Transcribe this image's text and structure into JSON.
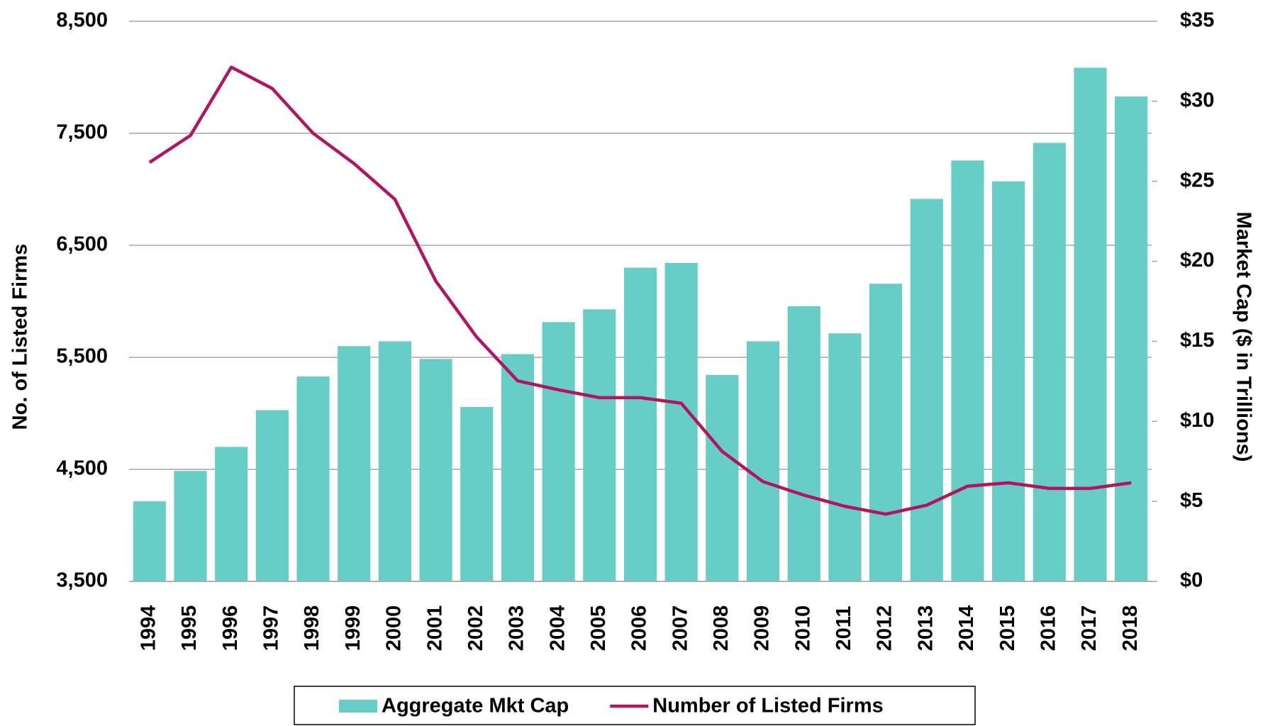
{
  "chart_data": {
    "type": "bar_line",
    "y_label": "No. of Listed Firms",
    "y2_label": "Market Cap ($ in Trillions)",
    "categories": [
      "1994",
      "1995",
      "1996",
      "1997",
      "1998",
      "1999",
      "2000",
      "2001",
      "2002",
      "2003",
      "2004",
      "2005",
      "2006",
      "2007",
      "2008",
      "2009",
      "2010",
      "2011",
      "2012",
      "2013",
      "2014",
      "2015",
      "2016",
      "2017",
      "2018"
    ],
    "series": [
      {
        "name": "Aggregate Mkt Cap",
        "type": "bar",
        "axis": "y2",
        "color": "#66cdc7",
        "values": [
          5.0,
          6.9,
          8.4,
          10.7,
          12.8,
          14.7,
          15.0,
          13.9,
          10.9,
          14.2,
          16.2,
          17.0,
          19.6,
          19.9,
          12.9,
          15.0,
          17.2,
          15.5,
          18.6,
          23.9,
          26.3,
          25.0,
          27.4,
          32.1,
          30.3
        ]
      },
      {
        "name": "Number of Listed Firms",
        "type": "line",
        "axis": "y",
        "color": "#b5135f",
        "values": [
          7240,
          7480,
          8090,
          7900,
          7500,
          7230,
          6910,
          6180,
          5680,
          5290,
          5210,
          5140,
          5140,
          5090,
          4660,
          4390,
          4270,
          4170,
          4100,
          4180,
          4350,
          4380,
          4330,
          4330,
          4380
        ]
      }
    ],
    "ylim": [
      3500,
      8500
    ],
    "yticks": [
      {
        "value": 3500,
        "label": "3,500"
      },
      {
        "value": 4500,
        "label": "4,500"
      },
      {
        "value": 5500,
        "label": "5,500"
      },
      {
        "value": 6500,
        "label": "6,500"
      },
      {
        "value": 7500,
        "label": "7,500"
      },
      {
        "value": 8500,
        "label": "8,500"
      }
    ],
    "y2lim": [
      0,
      35
    ],
    "y2ticks": [
      {
        "value": 0,
        "label": "$0"
      },
      {
        "value": 5,
        "label": "$5"
      },
      {
        "value": 10,
        "label": "$10"
      },
      {
        "value": 15,
        "label": "$15"
      },
      {
        "value": 20,
        "label": "$20"
      },
      {
        "value": 25,
        "label": "$25"
      },
      {
        "value": 30,
        "label": "$30"
      },
      {
        "value": 35,
        "label": "$35"
      }
    ],
    "grid": true,
    "legend": "bottom"
  }
}
